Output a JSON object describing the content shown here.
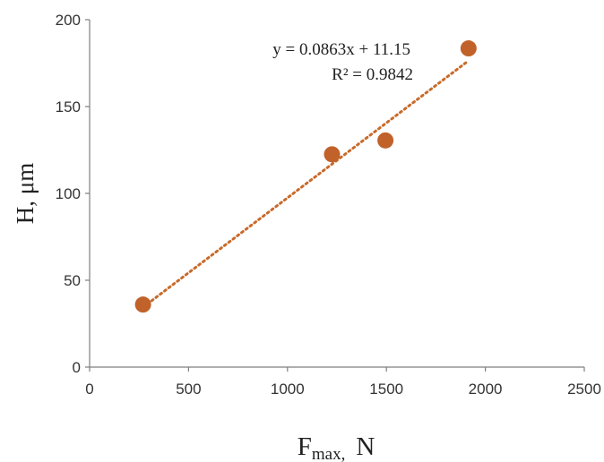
{
  "chart_data": {
    "type": "scatter",
    "title": "",
    "xlabel": {
      "main": "F",
      "sub": "max,",
      "unit": "N"
    },
    "ylabel": "H, μm",
    "xlim": [
      0,
      2500
    ],
    "ylim": [
      0,
      200
    ],
    "xticks": [
      0,
      500,
      1000,
      1500,
      2000,
      2500
    ],
    "yticks": [
      0,
      50,
      100,
      150,
      200
    ],
    "xtick_labels": [
      "0",
      "500",
      "1000",
      "1500",
      "2000",
      "2500"
    ],
    "ytick_labels": [
      "0",
      "50",
      "100",
      "150",
      "200"
    ],
    "grid": false,
    "legend": "none",
    "series": [
      {
        "x": [
          270,
          1225,
          1495,
          1915
        ],
        "y": [
          36,
          122.5,
          130.5,
          183.5
        ],
        "color": "#c0622a",
        "marker": "circle"
      }
    ],
    "trendline": {
      "type": "linear",
      "slope": 0.0863,
      "intercept": 11.15,
      "x_range": [
        270,
        1915
      ],
      "color": "#c86a2a",
      "style": "dotted",
      "equation_label": "y = 0.0863x + 11.15",
      "r2_label": "R² = 0.9842"
    }
  }
}
